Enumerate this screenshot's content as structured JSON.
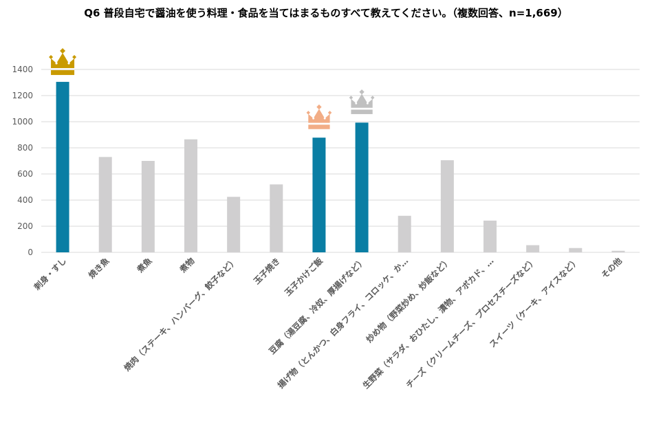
{
  "chart_data": {
    "type": "bar",
    "title": "Q6 普段自宅で醤油を使う料理・食品を当てはまるものすべて教えてください。（複数回答、n=1,669）",
    "categories": [
      "刺身・すし",
      "焼き魚",
      "煮魚",
      "煮物",
      "焼肉（ステーキ、ハンバーグ、餃子など）",
      "玉子焼き",
      "玉子かけご飯",
      "豆腐（湯豆腐、冷奴、厚揚げなど）",
      "揚げ物（とんかつ、白身フライ、コロッケ、か…",
      "炒め物（野菜炒め、炒飯など）",
      "生野菜（サラダ、おひたし、漬物、アボカド、…",
      "チーズ（クリームチーズ、プロセスチーズなど）",
      "スイーツ（ケーキ、アイスなど）",
      "その他"
    ],
    "values": [
      1305,
      730,
      700,
      865,
      425,
      520,
      878,
      993,
      280,
      705,
      243,
      55,
      33,
      12
    ],
    "ylim": [
      0,
      1400
    ],
    "yticks": [
      0,
      200,
      400,
      600,
      800,
      1000,
      1200,
      1400
    ],
    "grid": true,
    "legend": "none",
    "colors": {
      "highlight": "#0a7ea4",
      "normal": "#d0cfd0",
      "grid": "#d9d9d9"
    },
    "highlighted": [
      0,
      6,
      7
    ],
    "crowns": [
      {
        "category_index": 0,
        "rank": 1,
        "color": "#c99a00",
        "icon": "crown-icon-gold"
      },
      {
        "category_index": 7,
        "rank": 2,
        "color": "#c0c0c0",
        "icon": "crown-icon-silver"
      },
      {
        "category_index": 6,
        "rank": 3,
        "color": "#f2ad86",
        "icon": "crown-icon-bronze"
      }
    ]
  }
}
